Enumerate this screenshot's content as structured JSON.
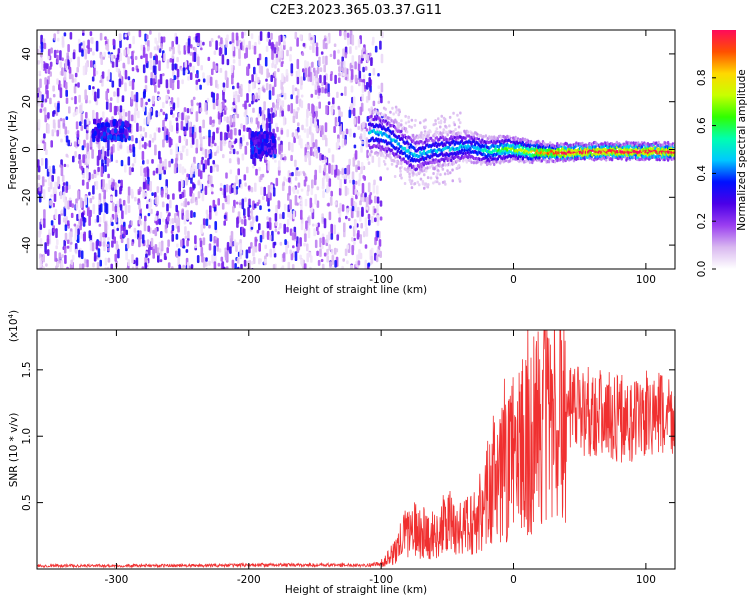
{
  "title": "C2E3.2023.365.03.37.G11",
  "chart_data": [
    {
      "type": "heatmap",
      "xlabel": "Height of straight line (km)",
      "ylabel": "Frequency (Hz)",
      "xlim": [
        -360,
        122
      ],
      "ylim": [
        -50,
        50
      ],
      "xticks": [
        -300,
        -200,
        -100,
        0,
        100
      ],
      "yticks": [
        -40,
        -20,
        0,
        20,
        40
      ],
      "colorbar": {
        "label": "Normalized spectral amplitude",
        "range": [
          0.0,
          1.0
        ],
        "ticks": [
          0.0,
          0.2,
          0.4,
          0.6,
          0.8
        ],
        "colors": [
          "#ffffff",
          "#d9b8f0",
          "#9b3ff0",
          "#4b00e8",
          "#0010ff",
          "#00c8ff",
          "#00ffb0",
          "#30ff00",
          "#c8ff00",
          "#ffd800",
          "#ff5000",
          "#ff0a5a"
        ]
      },
      "ridge": {
        "x": [
          -105,
          -95,
          -85,
          -75,
          -65,
          -50,
          -35,
          -20,
          -5,
          10,
          30,
          60,
          90,
          122
        ],
        "y": [
          8,
          6,
          2,
          -2,
          0,
          1,
          2,
          0,
          1,
          0,
          -0.5,
          0,
          0,
          0
        ]
      }
    },
    {
      "type": "line",
      "xlabel": "Height of straight line (km)",
      "ylabel": "SNR (10 * v/v)",
      "yscale_label": "(x10",
      "yscale_exp": "4",
      "yscale_close": ")",
      "xlim": [
        -360,
        122
      ],
      "ylim": [
        0,
        18000
      ],
      "xticks": [
        -300,
        -200,
        -100,
        0,
        100
      ],
      "yticks": [
        5000,
        10000,
        15000
      ],
      "ytick_labels": [
        "0.5",
        "1.0",
        "1.5"
      ],
      "color": "#f03030",
      "x": [
        -360,
        -300,
        -250,
        -200,
        -150,
        -110,
        -100,
        -90,
        -80,
        -70,
        -60,
        -50,
        -40,
        -30,
        -20,
        -10,
        0,
        10,
        20,
        30,
        40,
        50,
        60,
        70,
        80,
        90,
        100,
        110,
        122
      ],
      "y": [
        250,
        250,
        250,
        300,
        300,
        300,
        400,
        1200,
        3000,
        2800,
        2500,
        3500,
        3000,
        3500,
        5500,
        7000,
        8500,
        9500,
        11000,
        12000,
        11500,
        12000,
        12000,
        11500,
        11500,
        11000,
        11500,
        11500,
        11500
      ]
    }
  ]
}
